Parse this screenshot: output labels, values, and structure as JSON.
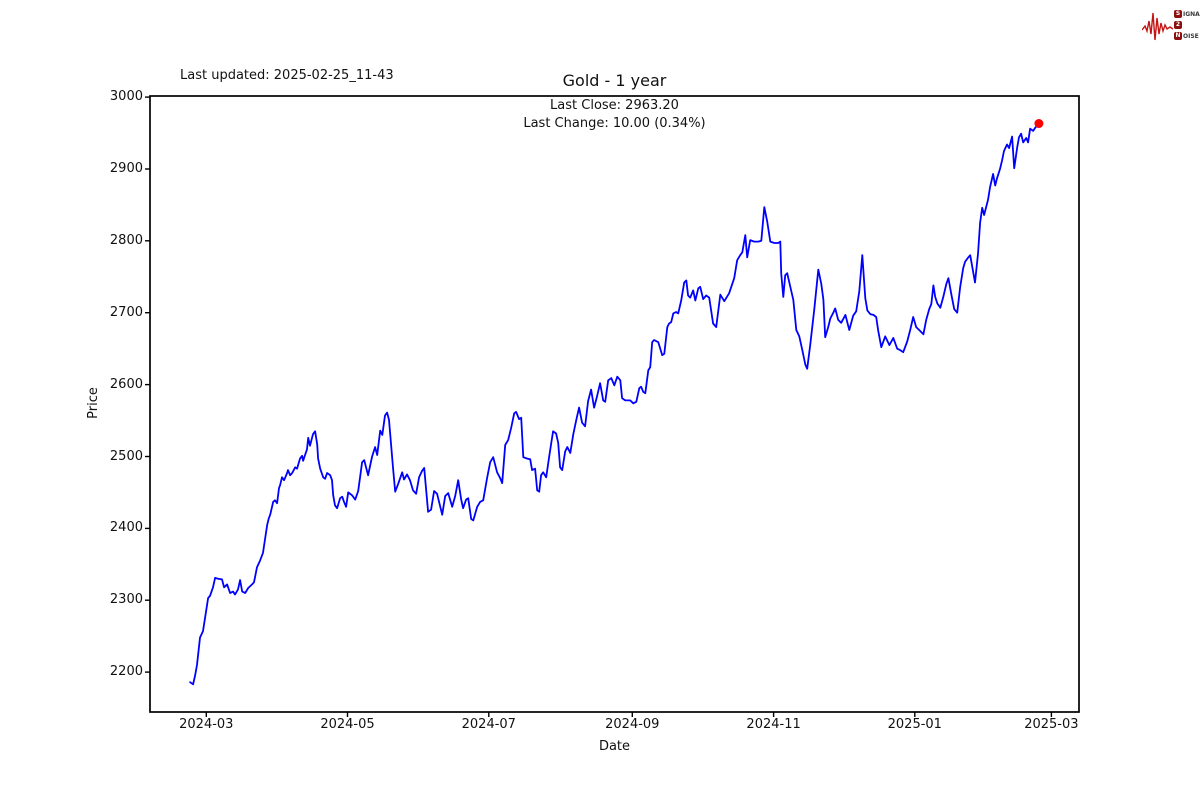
{
  "header": {
    "last_updated": "Last updated: 2025-02-25_11-43",
    "title": "Gold - 1 year",
    "subtitle_line1": "Last Close: 2963.20",
    "subtitle_line2": "Last Change: 10.00 (0.34%)"
  },
  "logo": {
    "rows": [
      {
        "badge": "S",
        "rest": "IGNAL"
      },
      {
        "badge": "2",
        "rest": ""
      },
      {
        "badge": "N",
        "rest": "OISE"
      }
    ],
    "waveform_color": "#c41414",
    "badge_color": "#8a0f0f"
  },
  "chart_data": {
    "type": "line",
    "title": "Gold - 1 year",
    "xlabel": "Date",
    "ylabel": "Price",
    "grid": false,
    "legend": "none",
    "line_color": "#0000ff",
    "marker_color": "#ff0000",
    "last_close": 2963.2,
    "last_change": "10.00 (0.34%)",
    "x_unit": "days since 2024-02-23",
    "start_date": "2024-02-23",
    "end_date": "2025-02-24",
    "x_axis": {
      "min": -17.3,
      "max": 383.9,
      "ticks": [
        {
          "day": 7,
          "label": "2024-03"
        },
        {
          "day": 68,
          "label": "2024-05"
        },
        {
          "day": 129,
          "label": "2024-07"
        },
        {
          "day": 191,
          "label": "2024-09"
        },
        {
          "day": 252,
          "label": "2024-11"
        },
        {
          "day": 313,
          "label": "2025-01"
        },
        {
          "day": 372,
          "label": "2025-03"
        }
      ]
    },
    "y_axis": {
      "min": 2144.5,
      "max": 3001.5,
      "ticks": [
        2200,
        2300,
        2400,
        2500,
        2600,
        2700,
        2800,
        2900,
        3000
      ]
    },
    "points": [
      [
        0,
        2186
      ],
      [
        1.3,
        2183
      ],
      [
        2.2,
        2196
      ],
      [
        3,
        2210
      ],
      [
        4.3,
        2248
      ],
      [
        5.6,
        2257
      ],
      [
        7.3,
        2293
      ],
      [
        7.8,
        2303
      ],
      [
        8.6,
        2306
      ],
      [
        9.9,
        2318
      ],
      [
        10.8,
        2331
      ],
      [
        12.1,
        2330
      ],
      [
        13.8,
        2329
      ],
      [
        14.7,
        2318
      ],
      [
        16,
        2322
      ],
      [
        17.3,
        2310
      ],
      [
        18.6,
        2312
      ],
      [
        19.4,
        2308
      ],
      [
        20.7,
        2315
      ],
      [
        21.6,
        2328
      ],
      [
        22.5,
        2312
      ],
      [
        23.8,
        2310
      ],
      [
        25.1,
        2317
      ],
      [
        26.8,
        2322
      ],
      [
        27.6,
        2325
      ],
      [
        28.9,
        2346
      ],
      [
        30.2,
        2355
      ],
      [
        31.5,
        2366
      ],
      [
        33.3,
        2405
      ],
      [
        34,
        2414
      ],
      [
        34.6,
        2419
      ],
      [
        35.9,
        2437
      ],
      [
        36.7,
        2439
      ],
      [
        37.6,
        2435
      ],
      [
        38.4,
        2456
      ],
      [
        38.9,
        2460
      ],
      [
        39.7,
        2471
      ],
      [
        40.6,
        2467
      ],
      [
        41.9,
        2477
      ],
      [
        42.3,
        2481
      ],
      [
        43.2,
        2474
      ],
      [
        44.1,
        2477
      ],
      [
        45.4,
        2485
      ],
      [
        46.2,
        2483
      ],
      [
        47.5,
        2497
      ],
      [
        48.4,
        2501
      ],
      [
        48.8,
        2494
      ],
      [
        50.5,
        2510
      ],
      [
        51,
        2526
      ],
      [
        51.8,
        2515
      ],
      [
        53.1,
        2531
      ],
      [
        54,
        2535
      ],
      [
        54.9,
        2517
      ],
      [
        55.3,
        2497
      ],
      [
        56.2,
        2483
      ],
      [
        57.5,
        2471
      ],
      [
        58.3,
        2469
      ],
      [
        59.2,
        2477
      ],
      [
        60.5,
        2474
      ],
      [
        61.3,
        2467
      ],
      [
        61.8,
        2446
      ],
      [
        62.6,
        2432
      ],
      [
        63.5,
        2428
      ],
      [
        64.8,
        2442
      ],
      [
        65.7,
        2444
      ],
      [
        66.5,
        2437
      ],
      [
        67.4,
        2430
      ],
      [
        68.3,
        2450
      ],
      [
        70,
        2446
      ],
      [
        71.3,
        2440
      ],
      [
        72.6,
        2452
      ],
      [
        74.3,
        2492
      ],
      [
        75.2,
        2495
      ],
      [
        76.9,
        2474
      ],
      [
        78.6,
        2500
      ],
      [
        79.9,
        2513
      ],
      [
        80.8,
        2502
      ],
      [
        82.1,
        2536
      ],
      [
        83,
        2530
      ],
      [
        84.2,
        2557
      ],
      [
        85.1,
        2561
      ],
      [
        85.9,
        2551
      ],
      [
        87.7,
        2483
      ],
      [
        88.6,
        2451
      ],
      [
        89.9,
        2462
      ],
      [
        91.6,
        2478
      ],
      [
        92.4,
        2468
      ],
      [
        93.7,
        2475
      ],
      [
        95,
        2467
      ],
      [
        96.3,
        2453
      ],
      [
        97.6,
        2448
      ],
      [
        98.9,
        2471
      ],
      [
        100.2,
        2480
      ],
      [
        101.1,
        2484
      ],
      [
        102.8,
        2423
      ],
      [
        104.1,
        2426
      ],
      [
        105.4,
        2452
      ],
      [
        106.7,
        2448
      ],
      [
        108.9,
        2419
      ],
      [
        110.2,
        2445
      ],
      [
        111.5,
        2449
      ],
      [
        113.2,
        2430
      ],
      [
        114.5,
        2445
      ],
      [
        115.8,
        2467
      ],
      [
        117.1,
        2440
      ],
      [
        117.9,
        2428
      ],
      [
        119.2,
        2440
      ],
      [
        120.1,
        2442
      ],
      [
        121.4,
        2413
      ],
      [
        122.3,
        2411
      ],
      [
        124,
        2430
      ],
      [
        125.3,
        2437
      ],
      [
        126.6,
        2439
      ],
      [
        128.3,
        2470
      ],
      [
        129.6,
        2492
      ],
      [
        130.9,
        2499
      ],
      [
        132.6,
        2478
      ],
      [
        133.9,
        2470
      ],
      [
        134.8,
        2463
      ],
      [
        136.1,
        2516
      ],
      [
        137.4,
        2523
      ],
      [
        138.7,
        2540
      ],
      [
        140,
        2560
      ],
      [
        140.8,
        2562
      ],
      [
        142.1,
        2552
      ],
      [
        143,
        2554
      ],
      [
        143.9,
        2499
      ],
      [
        145.6,
        2497
      ],
      [
        146.9,
        2496
      ],
      [
        147.7,
        2481
      ],
      [
        149,
        2483
      ],
      [
        149.9,
        2453
      ],
      [
        150.8,
        2451
      ],
      [
        151.6,
        2474
      ],
      [
        152.5,
        2478
      ],
      [
        153.8,
        2471
      ],
      [
        155.1,
        2500
      ],
      [
        156,
        2519
      ],
      [
        156.8,
        2535
      ],
      [
        158.1,
        2532
      ],
      [
        159,
        2519
      ],
      [
        159.8,
        2485
      ],
      [
        160.7,
        2481
      ],
      [
        162,
        2507
      ],
      [
        162.9,
        2513
      ],
      [
        164.2,
        2505
      ],
      [
        165.5,
        2531
      ],
      [
        166.8,
        2551
      ],
      [
        168,
        2568
      ],
      [
        169.3,
        2547
      ],
      [
        170.6,
        2542
      ],
      [
        171.9,
        2577
      ],
      [
        173.2,
        2593
      ],
      [
        174.5,
        2568
      ],
      [
        175.8,
        2584
      ],
      [
        177.1,
        2602
      ],
      [
        178.4,
        2578
      ],
      [
        179.3,
        2576
      ],
      [
        180.6,
        2606
      ],
      [
        181.9,
        2609
      ],
      [
        183.2,
        2599
      ],
      [
        184.5,
        2611
      ],
      [
        185.8,
        2606
      ],
      [
        186.6,
        2581
      ],
      [
        187.9,
        2578
      ],
      [
        190.1,
        2578
      ],
      [
        191.4,
        2574
      ],
      [
        192.7,
        2576
      ],
      [
        194,
        2595
      ],
      [
        194.8,
        2597
      ],
      [
        195.7,
        2590
      ],
      [
        196.6,
        2588
      ],
      [
        197.9,
        2620
      ],
      [
        198.7,
        2624
      ],
      [
        199.6,
        2659
      ],
      [
        200.4,
        2662
      ],
      [
        202.2,
        2659
      ],
      [
        203.9,
        2641
      ],
      [
        204.8,
        2643
      ],
      [
        206.1,
        2680
      ],
      [
        206.9,
        2685
      ],
      [
        207.8,
        2687
      ],
      [
        208.7,
        2699
      ],
      [
        209.9,
        2701
      ],
      [
        210.8,
        2699
      ],
      [
        212.1,
        2717
      ],
      [
        213.4,
        2742
      ],
      [
        214.3,
        2745
      ],
      [
        215.1,
        2724
      ],
      [
        216,
        2721
      ],
      [
        217.3,
        2731
      ],
      [
        218.2,
        2717
      ],
      [
        219.5,
        2734
      ],
      [
        220.3,
        2736
      ],
      [
        221.6,
        2719
      ],
      [
        222.9,
        2724
      ],
      [
        224.2,
        2721
      ],
      [
        225.9,
        2685
      ],
      [
        227.2,
        2680
      ],
      [
        229,
        2725
      ],
      [
        230.7,
        2716
      ],
      [
        232.8,
        2727
      ],
      [
        235,
        2748
      ],
      [
        236.3,
        2773
      ],
      [
        237.6,
        2780
      ],
      [
        238.5,
        2784
      ],
      [
        239.8,
        2808
      ],
      [
        240.6,
        2777
      ],
      [
        241.9,
        2801
      ],
      [
        243.6,
        2799
      ],
      [
        245.4,
        2799
      ],
      [
        246.7,
        2800
      ],
      [
        248,
        2847
      ],
      [
        249.3,
        2826
      ],
      [
        250.6,
        2799
      ],
      [
        252.3,
        2797
      ],
      [
        254,
        2797
      ],
      [
        254.9,
        2799
      ],
      [
        255.3,
        2755
      ],
      [
        256.2,
        2722
      ],
      [
        257,
        2752
      ],
      [
        257.9,
        2755
      ],
      [
        259.2,
        2736
      ],
      [
        260.5,
        2718
      ],
      [
        261.8,
        2676
      ],
      [
        263.1,
        2667
      ],
      [
        264.4,
        2648
      ],
      [
        265.7,
        2628
      ],
      [
        266.5,
        2622
      ],
      [
        267.8,
        2655
      ],
      [
        269.6,
        2705
      ],
      [
        271.3,
        2760
      ],
      [
        272.6,
        2740
      ],
      [
        273.5,
        2718
      ],
      [
        274.3,
        2666
      ],
      [
        275.6,
        2680
      ],
      [
        276.5,
        2692
      ],
      [
        277.8,
        2700
      ],
      [
        278.6,
        2706
      ],
      [
        279.9,
        2690
      ],
      [
        281.2,
        2686
      ],
      [
        283,
        2697
      ],
      [
        284.7,
        2676
      ],
      [
        286.4,
        2696
      ],
      [
        287.7,
        2702
      ],
      [
        289,
        2730
      ],
      [
        290.3,
        2780
      ],
      [
        291.6,
        2720
      ],
      [
        292.5,
        2703
      ],
      [
        293.8,
        2698
      ],
      [
        295.1,
        2697
      ],
      [
        296.3,
        2694
      ],
      [
        297.2,
        2675
      ],
      [
        298.5,
        2652
      ],
      [
        300.2,
        2667
      ],
      [
        302,
        2655
      ],
      [
        303.7,
        2665
      ],
      [
        305.4,
        2650
      ],
      [
        306.7,
        2648
      ],
      [
        308,
        2645
      ],
      [
        309.7,
        2660
      ],
      [
        311,
        2676
      ],
      [
        312.3,
        2694
      ],
      [
        313.6,
        2680
      ],
      [
        314.9,
        2676
      ],
      [
        316.7,
        2670
      ],
      [
        317.9,
        2690
      ],
      [
        319.2,
        2705
      ],
      [
        320.1,
        2712
      ],
      [
        321,
        2738
      ],
      [
        321.8,
        2722
      ],
      [
        322.7,
        2713
      ],
      [
        324,
        2707
      ],
      [
        325.3,
        2722
      ],
      [
        326.6,
        2740
      ],
      [
        327.5,
        2748
      ],
      [
        328.8,
        2725
      ],
      [
        330,
        2705
      ],
      [
        331.3,
        2700
      ],
      [
        332.6,
        2736
      ],
      [
        333.9,
        2762
      ],
      [
        334.7,
        2771
      ],
      [
        336.1,
        2777
      ],
      [
        336.9,
        2780
      ],
      [
        337.7,
        2766
      ],
      [
        339,
        2742
      ],
      [
        340.3,
        2782
      ],
      [
        341.2,
        2825
      ],
      [
        342.1,
        2846
      ],
      [
        342.9,
        2836
      ],
      [
        344.6,
        2857
      ],
      [
        345.5,
        2875
      ],
      [
        346.8,
        2893
      ],
      [
        347.7,
        2877
      ],
      [
        348.5,
        2887
      ],
      [
        349.8,
        2900
      ],
      [
        350.7,
        2912
      ],
      [
        351.5,
        2925
      ],
      [
        352.8,
        2934
      ],
      [
        353.7,
        2929
      ],
      [
        355,
        2945
      ],
      [
        355.9,
        2901
      ],
      [
        357.2,
        2930
      ],
      [
        358,
        2944
      ],
      [
        358.9,
        2949
      ],
      [
        359.8,
        2937
      ],
      [
        361.1,
        2943
      ],
      [
        361.9,
        2937
      ],
      [
        362.8,
        2956
      ],
      [
        364.1,
        2953
      ],
      [
        364.9,
        2957
      ],
      [
        366.6,
        2963.2
      ]
    ]
  }
}
